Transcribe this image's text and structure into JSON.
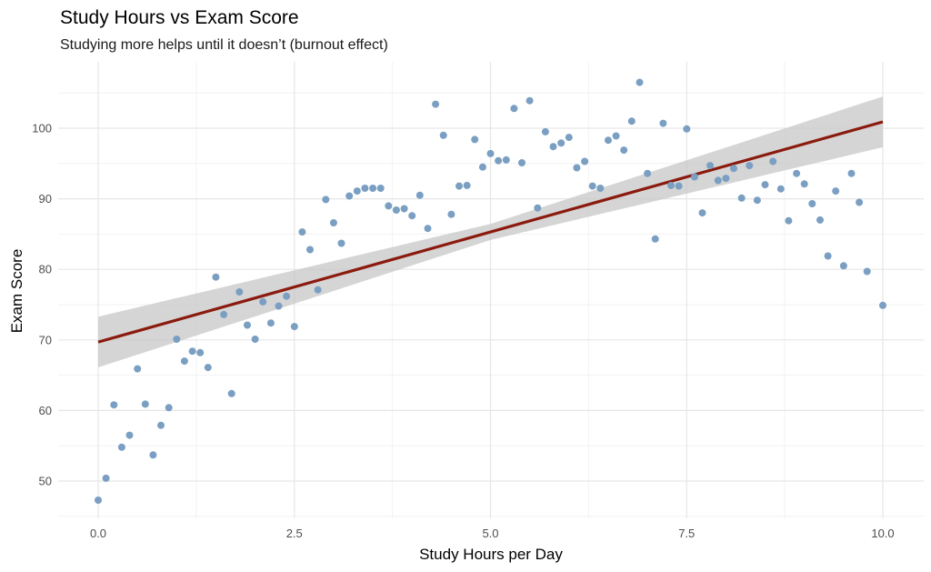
{
  "chart_data": {
    "type": "scatter",
    "title": "Study Hours vs Exam Score",
    "subtitle": "Studying more helps until it doesn’t (burnout effect)",
    "xlabel": "Study Hours per Day",
    "ylabel": "Exam Score",
    "xlim": [
      -0.5,
      10.3
    ],
    "ylim": [
      44,
      109
    ],
    "xticks": [
      0,
      2.5,
      5,
      7.5,
      10
    ],
    "xtick_labels": [
      "0.0",
      "2.5",
      "5.0",
      "7.5",
      "10.0"
    ],
    "yticks": [
      50,
      60,
      70,
      80,
      90,
      100
    ],
    "ytick_labels": [
      "50",
      "60",
      "70",
      "80",
      "90",
      "100"
    ],
    "grid": true,
    "point_color": "#7a9fc2",
    "line_color": "#8b1a0e",
    "band_color": "#c7c7c7",
    "trend": {
      "type": "linear",
      "x": [
        0,
        10
      ],
      "y": [
        69.7,
        100.9
      ],
      "ci_lower": [
        65.9,
        97.1
      ],
      "ci_upper": [
        73.5,
        104.7
      ]
    },
    "points": [
      [
        0.0,
        47.3
      ],
      [
        0.1,
        50.4
      ],
      [
        0.2,
        60.8
      ],
      [
        0.3,
        54.8
      ],
      [
        0.4,
        56.5
      ],
      [
        0.5,
        65.9
      ],
      [
        0.6,
        60.9
      ],
      [
        0.7,
        53.7
      ],
      [
        0.8,
        57.9
      ],
      [
        0.9,
        60.4
      ],
      [
        1.0,
        70.1
      ],
      [
        1.1,
        67.0
      ],
      [
        1.2,
        68.4
      ],
      [
        1.3,
        68.2
      ],
      [
        1.4,
        66.1
      ],
      [
        1.5,
        78.9
      ],
      [
        1.6,
        73.6
      ],
      [
        1.7,
        62.4
      ],
      [
        1.8,
        76.8
      ],
      [
        1.9,
        72.1
      ],
      [
        2.0,
        70.1
      ],
      [
        2.1,
        75.4
      ],
      [
        2.2,
        72.4
      ],
      [
        2.3,
        74.8
      ],
      [
        2.4,
        76.2
      ],
      [
        2.5,
        71.9
      ],
      [
        2.6,
        85.3
      ],
      [
        2.7,
        82.8
      ],
      [
        2.8,
        77.1
      ],
      [
        2.9,
        89.9
      ],
      [
        3.0,
        86.6
      ],
      [
        3.1,
        83.7
      ],
      [
        3.2,
        90.4
      ],
      [
        3.3,
        91.1
      ],
      [
        3.4,
        91.5
      ],
      [
        3.5,
        91.5
      ],
      [
        3.6,
        91.5
      ],
      [
        3.7,
        89.0
      ],
      [
        3.8,
        88.4
      ],
      [
        3.9,
        88.6
      ],
      [
        4.0,
        87.6
      ],
      [
        4.1,
        90.5
      ],
      [
        4.2,
        85.8
      ],
      [
        4.3,
        103.4
      ],
      [
        4.4,
        99.0
      ],
      [
        4.5,
        87.8
      ],
      [
        4.6,
        91.8
      ],
      [
        4.7,
        91.9
      ],
      [
        4.8,
        98.4
      ],
      [
        4.9,
        94.5
      ],
      [
        5.0,
        96.4
      ],
      [
        5.1,
        95.4
      ],
      [
        5.2,
        95.5
      ],
      [
        5.3,
        102.8
      ],
      [
        5.4,
        95.1
      ],
      [
        5.5,
        103.9
      ],
      [
        5.6,
        88.7
      ],
      [
        5.7,
        99.5
      ],
      [
        5.8,
        97.4
      ],
      [
        5.9,
        97.9
      ],
      [
        6.0,
        98.7
      ],
      [
        6.1,
        94.4
      ],
      [
        6.2,
        95.3
      ],
      [
        6.3,
        91.8
      ],
      [
        6.4,
        91.5
      ],
      [
        6.5,
        98.3
      ],
      [
        6.6,
        98.9
      ],
      [
        6.7,
        96.9
      ],
      [
        6.8,
        101.0
      ],
      [
        6.9,
        106.5
      ],
      [
        7.0,
        93.6
      ],
      [
        7.1,
        84.3
      ],
      [
        7.2,
        100.7
      ],
      [
        7.3,
        91.9
      ],
      [
        7.4,
        91.8
      ],
      [
        7.5,
        99.9
      ],
      [
        7.6,
        93.1
      ],
      [
        7.7,
        88.0
      ],
      [
        7.8,
        94.7
      ],
      [
        7.9,
        92.6
      ],
      [
        8.0,
        92.9
      ],
      [
        8.1,
        94.3
      ],
      [
        8.2,
        90.1
      ],
      [
        8.3,
        94.7
      ],
      [
        8.4,
        89.8
      ],
      [
        8.5,
        92.0
      ],
      [
        8.6,
        95.3
      ],
      [
        8.7,
        91.4
      ],
      [
        8.8,
        86.9
      ],
      [
        8.9,
        93.6
      ],
      [
        9.0,
        92.1
      ],
      [
        9.1,
        89.3
      ],
      [
        9.2,
        87.0
      ],
      [
        9.3,
        81.9
      ],
      [
        9.4,
        91.1
      ],
      [
        9.5,
        80.5
      ],
      [
        9.6,
        93.6
      ],
      [
        9.7,
        89.5
      ],
      [
        9.8,
        79.7
      ],
      [
        10.0,
        74.9
      ]
    ]
  }
}
